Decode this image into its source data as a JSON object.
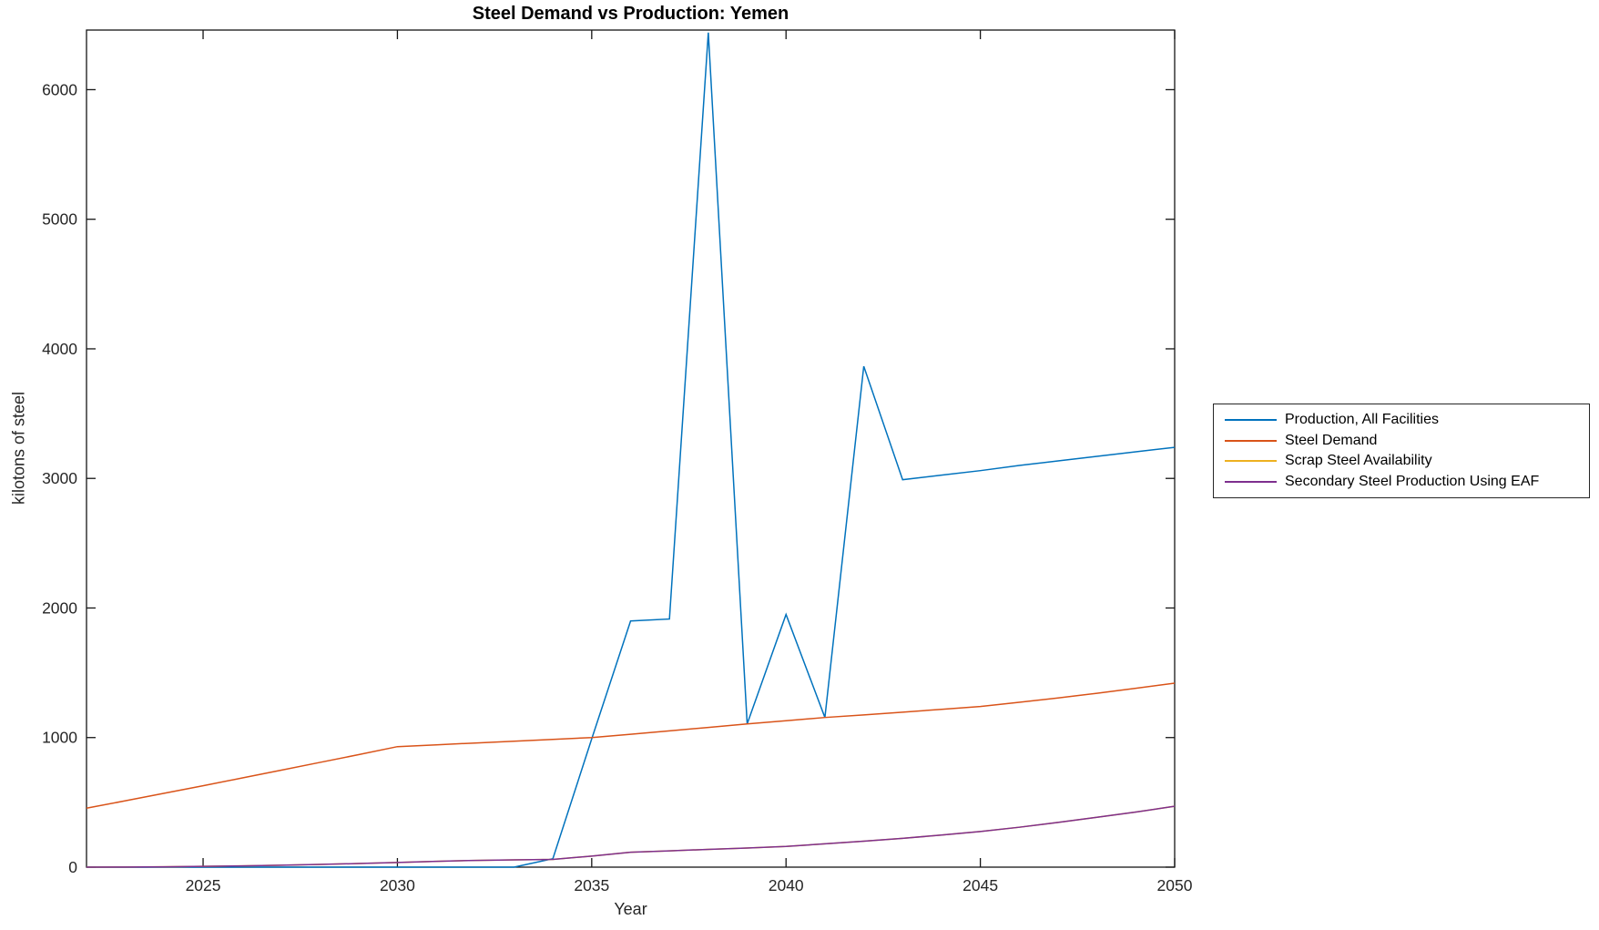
{
  "figure": {
    "title": "Steel Demand vs Production: Yemen",
    "xlabel": "Year",
    "ylabel": "kilotons of steel"
  },
  "chart_data": {
    "type": "line",
    "title": "Steel Demand vs Production: Yemen",
    "xlabel": "Year",
    "ylabel": "kilotons of steel",
    "xlim": [
      2022,
      2050
    ],
    "ylim": [
      0,
      6460
    ],
    "x_ticks": [
      2025,
      2030,
      2035,
      2040,
      2045,
      2050
    ],
    "y_ticks": [
      0,
      1000,
      2000,
      3000,
      4000,
      5000,
      6000
    ],
    "grid": false,
    "legend_position": "outside-right",
    "x": [
      2022,
      2023,
      2024,
      2025,
      2026,
      2027,
      2028,
      2029,
      2030,
      2031,
      2032,
      2033,
      2034,
      2035,
      2036,
      2037,
      2038,
      2039,
      2040,
      2041,
      2042,
      2043,
      2044,
      2045,
      2046,
      2047,
      2048,
      2049,
      2050
    ],
    "series": [
      {
        "name": "Production, All Facilities",
        "color": "#0072BD",
        "values": [
          0,
          0,
          0,
          0,
          0,
          0,
          0,
          0,
          0,
          0,
          0,
          0,
          65,
          990,
          1900,
          1915,
          6440,
          1105,
          1950,
          1155,
          3865,
          2990,
          3025,
          3060,
          3100,
          3135,
          3170,
          3205,
          3240
        ]
      },
      {
        "name": "Steel Demand",
        "color": "#D95319",
        "values": [
          455,
          512,
          570,
          628,
          688,
          748,
          808,
          868,
          930,
          944,
          958,
          972,
          986,
          1000,
          1025,
          1052,
          1078,
          1105,
          1130,
          1155,
          1175,
          1196,
          1218,
          1240,
          1272,
          1306,
          1342,
          1380,
          1420
        ]
      },
      {
        "name": "Scrap Steel Availability",
        "color": "#EDB120",
        "values": [
          0,
          1,
          3,
          6,
          10,
          15,
          21,
          28,
          36,
          45,
          52,
          56,
          60,
          85,
          115,
          126,
          137,
          148,
          160,
          180,
          200,
          222,
          248,
          275,
          308,
          345,
          385,
          425,
          470
        ]
      },
      {
        "name": "Secondary Steel Production Using EAF",
        "color": "#7E2F8E",
        "values": [
          0,
          1,
          3,
          6,
          10,
          15,
          21,
          28,
          36,
          45,
          52,
          56,
          60,
          85,
          115,
          126,
          137,
          148,
          160,
          180,
          200,
          222,
          248,
          275,
          308,
          345,
          385,
          425,
          470
        ]
      }
    ]
  },
  "axes": {
    "tick_label_color": "#262626",
    "axis_color": "#151515"
  }
}
